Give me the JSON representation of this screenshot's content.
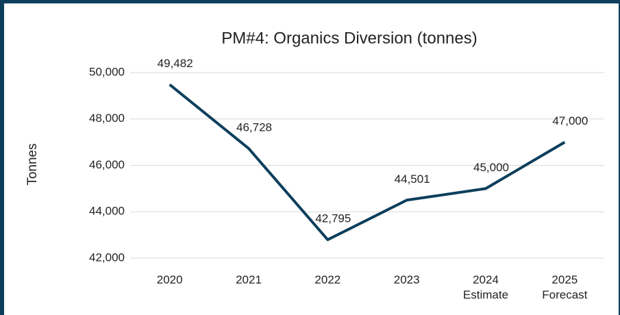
{
  "chart_data": {
    "type": "line",
    "title": "PM#4: Organics Diversion (tonnes)",
    "y_label": "Tonnes",
    "categories": [
      "2020",
      "2021",
      "2022",
      "2023",
      "2024\nEstimate",
      "2025\nForecast"
    ],
    "series": [
      {
        "name": "Organics Diversion",
        "color": "#0d3f5c",
        "values": [
          49482,
          46728,
          42795,
          44501,
          45000,
          47000
        ],
        "value_labels": [
          "49,482",
          "46,728",
          "42,795",
          "44,501",
          "45,000",
          "47,000"
        ]
      }
    ],
    "ylim": [
      42000,
      50000
    ],
    "yticks": [
      {
        "value": 42000,
        "label": "42,000"
      },
      {
        "value": 44000,
        "label": "44,000"
      },
      {
        "value": 46000,
        "label": "46,000"
      },
      {
        "value": 48000,
        "label": "48,000"
      },
      {
        "value": 50000,
        "label": "50,000"
      }
    ],
    "grid": true
  }
}
